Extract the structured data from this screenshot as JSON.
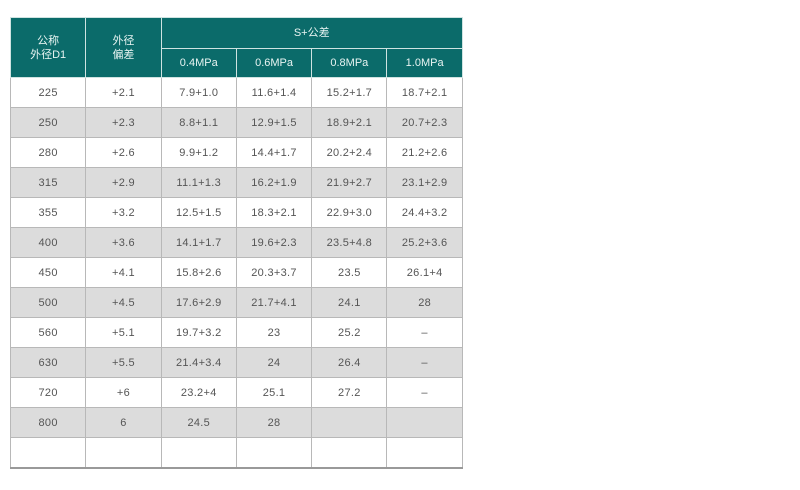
{
  "header": {
    "col1": [
      "公称",
      "外径D1"
    ],
    "col2": [
      "外径",
      "偏差"
    ],
    "group": "S+公差",
    "pressures": [
      "0.4MPa",
      "0.6MPa",
      "0.8MPa",
      "1.0MPa"
    ]
  },
  "header_color": "#0b6b6a",
  "rows": [
    [
      "225",
      "+2.1",
      "7.9+1.0",
      "11.6+1.4",
      "15.2+1.7",
      "18.7+2.1"
    ],
    [
      "250",
      "+2.3",
      "8.8+1.1",
      "12.9+1.5",
      "18.9+2.1",
      "20.7+2.3"
    ],
    [
      "280",
      "+2.6",
      "9.9+1.2",
      "14.4+1.7",
      "20.2+2.4",
      "21.2+2.6"
    ],
    [
      "315",
      "+2.9",
      "11.1+1.3",
      "16.2+1.9",
      "21.9+2.7",
      "23.1+2.9"
    ],
    [
      "355",
      "+3.2",
      "12.5+1.5",
      "18.3+2.1",
      "22.9+3.0",
      "24.4+3.2"
    ],
    [
      "400",
      "+3.6",
      "14.1+1.7",
      "19.6+2.3",
      "23.5+4.8",
      "25.2+3.6"
    ],
    [
      "450",
      "+4.1",
      "15.8+2.6",
      "20.3+3.7",
      "23.5",
      "26.1+4"
    ],
    [
      "500",
      "+4.5",
      "17.6+2.9",
      "21.7+4.1",
      "24.1",
      "28"
    ],
    [
      "560",
      "+5.1",
      "19.7+3.2",
      "23",
      "25.2",
      "–"
    ],
    [
      "630",
      "+5.5",
      "21.4+3.4",
      "24",
      "26.4",
      "–"
    ],
    [
      "720",
      "+6",
      "23.2+4",
      "25.1",
      "27.2",
      "–"
    ],
    [
      "800",
      "6",
      "24.5",
      "28",
      "",
      ""
    ],
    [
      "",
      "",
      "",
      "",
      "",
      ""
    ]
  ]
}
